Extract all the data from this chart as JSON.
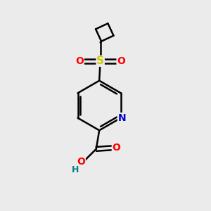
{
  "background_color": "#ebebeb",
  "atom_colors": {
    "C": "#000000",
    "N": "#0000cc",
    "O": "#ff0000",
    "S": "#cccc00",
    "H": "#008080"
  },
  "bond_color": "#000000",
  "bond_width": 1.8,
  "figsize": [
    3.0,
    3.0
  ],
  "dpi": 100,
  "font_size": 10
}
